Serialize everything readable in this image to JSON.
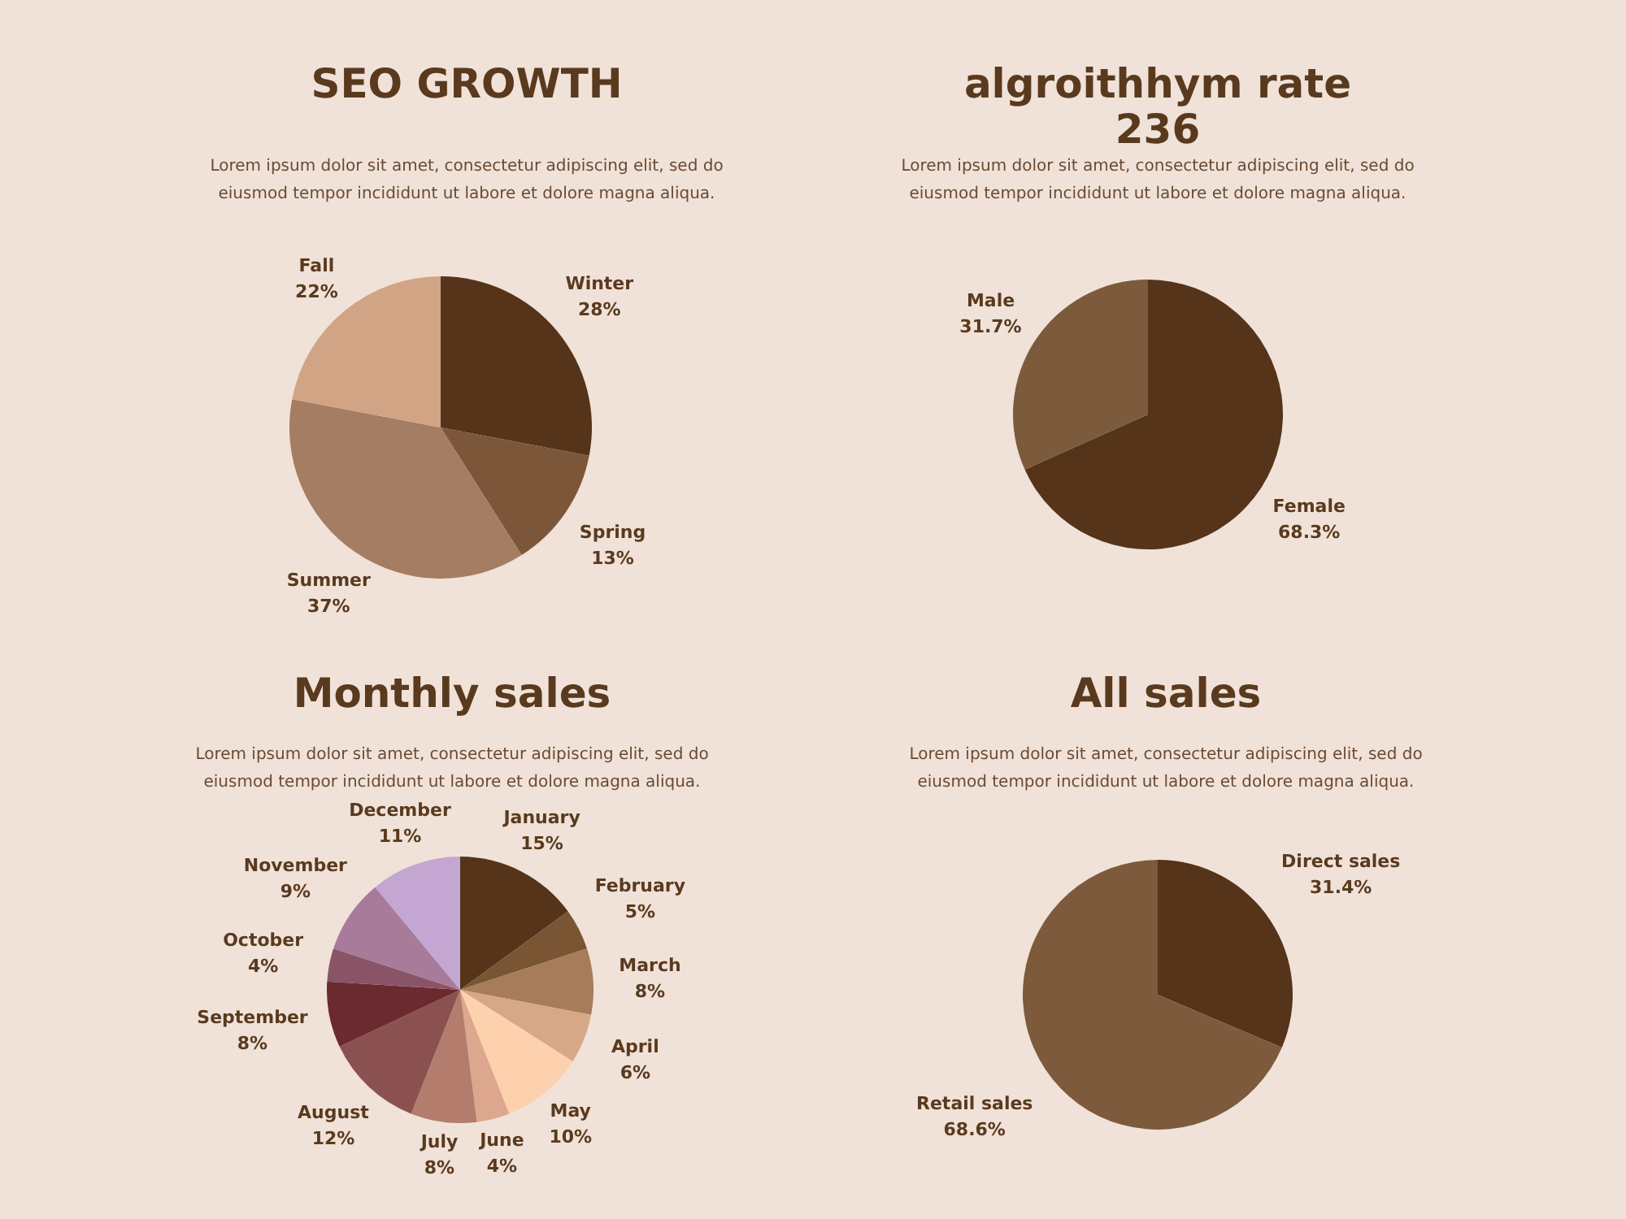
{
  "chart_data": [
    {
      "type": "pie",
      "title": "SEO GROWTH",
      "subtitle": "Lorem ipsum dolor sit amet, consectetur adipiscing elit, sed do eiusmod tempor incididunt ut labore et dolore magna aliqua.",
      "categories": [
        "Winter",
        "Spring",
        "Summer",
        "Fall"
      ],
      "values": [
        28,
        13,
        37,
        22
      ],
      "value_labels": [
        "28%",
        "13%",
        "37%",
        "22%"
      ],
      "colors": [
        "#55341a",
        "#7c5638",
        "#a57d63",
        "#d1a485"
      ]
    },
    {
      "type": "pie",
      "title": "algroithhym rate\n236",
      "subtitle": "Lorem ipsum dolor sit amet, consectetur adipiscing elit, sed do eiusmod tempor incididunt ut labore et dolore magna aliqua.",
      "categories": [
        "Female",
        "Male"
      ],
      "values": [
        68.3,
        31.7
      ],
      "value_labels": [
        "68.3%",
        "31.7%"
      ],
      "colors": [
        "#55341a",
        "#7c5a3c"
      ]
    },
    {
      "type": "pie",
      "title": "Monthly sales",
      "subtitle": "Lorem ipsum dolor sit amet, consectetur adipiscing elit, sed do eiusmod tempor incididunt ut labore et dolore magna aliqua.",
      "categories": [
        "January",
        "February",
        "March",
        "April",
        "May",
        "June",
        "July",
        "August",
        "September",
        "October",
        "November",
        "December"
      ],
      "values": [
        15,
        5,
        8,
        6,
        10,
        4,
        8,
        12,
        8,
        4,
        9,
        11
      ],
      "value_labels": [
        "15%",
        "5%",
        "8%",
        "6%",
        "10%",
        "4%",
        "8%",
        "12%",
        "8%",
        "4%",
        "9%",
        "11%"
      ],
      "colors": [
        "#55341a",
        "#7a5534",
        "#a67c5b",
        "#d6a888",
        "#fdd1ae",
        "#dca78d",
        "#b47c6c",
        "#8b5150",
        "#6a2a2f",
        "#8a5467",
        "#a97b9b",
        "#c4a6d2"
      ]
    },
    {
      "type": "pie",
      "title": "All sales",
      "subtitle": "Lorem ipsum dolor sit amet, consectetur adipiscing elit, sed do eiusmod tempor incididunt ut labore et dolore magna aliqua.",
      "categories": [
        "Direct sales",
        "Retail sales"
      ],
      "values": [
        31.4,
        68.6
      ],
      "value_labels": [
        "31.4%",
        "68.6%"
      ],
      "colors": [
        "#55341a",
        "#7d5a3b"
      ]
    }
  ]
}
